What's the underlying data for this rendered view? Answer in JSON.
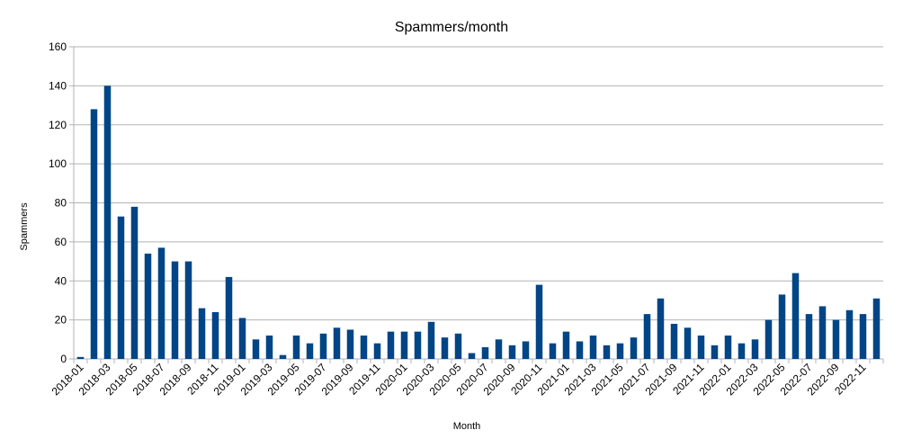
{
  "chart_data": {
    "type": "bar",
    "title": "Spammers/month",
    "xlabel": "Month",
    "ylabel": "Spammers",
    "ylim": [
      0,
      160
    ],
    "yticks": [
      0,
      20,
      40,
      60,
      80,
      100,
      120,
      140,
      160
    ],
    "grid": true,
    "legend": "none",
    "bar_color": "#004586",
    "categories": [
      "2018-01",
      "2018-02",
      "2018-03",
      "2018-04",
      "2018-05",
      "2018-06",
      "2018-07",
      "2018-08",
      "2018-09",
      "2018-10",
      "2018-11",
      "2018-12",
      "2019-01",
      "2019-02",
      "2019-03",
      "2019-04",
      "2019-05",
      "2019-06",
      "2019-07",
      "2019-08",
      "2019-09",
      "2019-10",
      "2019-11",
      "2019-12",
      "2020-01",
      "2020-02",
      "2020-03",
      "2020-04",
      "2020-05",
      "2020-06",
      "2020-07",
      "2020-08",
      "2020-09",
      "2020-10",
      "2020-11",
      "2020-12",
      "2021-01",
      "2021-02",
      "2021-03",
      "2021-04",
      "2021-05",
      "2021-06",
      "2021-07",
      "2021-08",
      "2021-09",
      "2021-10",
      "2021-11",
      "2021-12",
      "2022-01",
      "2022-02",
      "2022-03",
      "2022-04",
      "2022-05",
      "2022-06",
      "2022-07",
      "2022-08",
      "2022-09",
      "2022-10",
      "2022-11",
      "2022-12"
    ],
    "tick_labels": [
      "2018-01",
      "2018-03",
      "2018-05",
      "2018-07",
      "2018-09",
      "2018-11",
      "2019-01",
      "2019-03",
      "2019-05",
      "2019-07",
      "2019-09",
      "2019-11",
      "2020-01",
      "2020-03",
      "2020-05",
      "2020-07",
      "2020-09",
      "2020-11",
      "2021-01",
      "2021-03",
      "2021-05",
      "2021-07",
      "2021-09",
      "2021-11",
      "2022-01",
      "2022-03",
      "2022-05",
      "2022-07",
      "2022-09",
      "2022-11"
    ],
    "values": [
      1,
      128,
      140,
      73,
      78,
      54,
      57,
      50,
      50,
      26,
      24,
      42,
      21,
      10,
      12,
      2,
      12,
      8,
      13,
      16,
      15,
      12,
      8,
      14,
      14,
      14,
      19,
      11,
      13,
      3,
      6,
      10,
      7,
      9,
      38,
      8,
      14,
      9,
      12,
      7,
      8,
      11,
      23,
      31,
      18,
      16,
      12,
      7,
      12,
      8,
      10,
      20,
      33,
      44,
      23,
      27,
      20,
      25,
      23,
      31
    ]
  }
}
